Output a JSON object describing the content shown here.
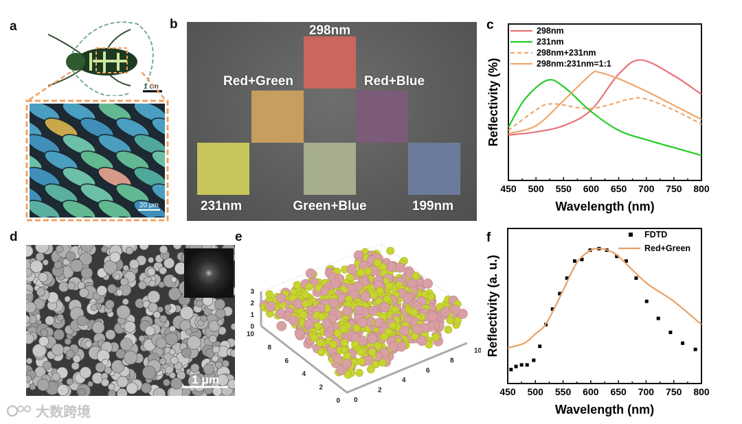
{
  "panels": {
    "a": {
      "label": "a",
      "beetle_scale": "1 cm",
      "scales_scale": "20 μm"
    },
    "b": {
      "label": "b",
      "samples": [
        {
          "name": "298nm",
          "color": "#c9675c"
        },
        {
          "name": "Red+Green",
          "color": "#c79e5e"
        },
        {
          "name": "Red+Blue",
          "color": "#7b5b78"
        },
        {
          "name": "231nm",
          "color": "#c6c65c"
        },
        {
          "name": "Green+Blue",
          "color": "#a6ae8e"
        },
        {
          "name": "199nm",
          "color": "#6c7b9b"
        }
      ]
    },
    "d": {
      "label": "d",
      "scale": "1 μm"
    },
    "e": {
      "label": "e",
      "z_ticks": [
        "0",
        "1",
        "2",
        "3"
      ],
      "y_ticks": [
        "0",
        "2",
        "4",
        "6",
        "8",
        "10"
      ],
      "x_ticks": [
        "0",
        "2",
        "4",
        "6",
        "8",
        "10"
      ],
      "colors": {
        "red": "#d9a0a4",
        "green": "#c8d430"
      }
    }
  },
  "watermark": "大数跨境",
  "chart_data": [
    {
      "id": "c",
      "panel_label": "c",
      "type": "line",
      "xlabel": "Wavelength (nm)",
      "ylabel": "Reflectivity (%)",
      "xlim": [
        450,
        800
      ],
      "ylim": [
        0,
        1
      ],
      "xticks": [
        450,
        500,
        550,
        600,
        650,
        700,
        750,
        800
      ],
      "grid": false,
      "legend_position": "top-left",
      "series": [
        {
          "name": "298nm",
          "color": "#e8737a",
          "dash": false,
          "x": [
            450,
            500,
            550,
            600,
            650,
            690,
            750,
            800
          ],
          "y": [
            0.29,
            0.31,
            0.35,
            0.45,
            0.68,
            0.77,
            0.67,
            0.55
          ]
        },
        {
          "name": "231nm",
          "color": "#22cc22",
          "dash": false,
          "x": [
            450,
            480,
            520,
            550,
            600,
            650,
            700,
            750,
            800
          ],
          "y": [
            0.34,
            0.52,
            0.64,
            0.6,
            0.44,
            0.32,
            0.26,
            0.21,
            0.16
          ]
        },
        {
          "name": "298nm+231nm",
          "color": "#f0a66a",
          "dash": true,
          "x": [
            450,
            500,
            530,
            600,
            670,
            700,
            750,
            800
          ],
          "y": [
            0.32,
            0.45,
            0.49,
            0.46,
            0.52,
            0.52,
            0.45,
            0.36
          ]
        },
        {
          "name": "298nm:231nm=1:1",
          "color": "#f0a66a",
          "dash": false,
          "x": [
            450,
            500,
            550,
            600,
            615,
            650,
            700,
            750,
            800
          ],
          "y": [
            0.3,
            0.35,
            0.51,
            0.68,
            0.69,
            0.65,
            0.57,
            0.48,
            0.39
          ]
        }
      ]
    },
    {
      "id": "f",
      "panel_label": "f",
      "type": "line",
      "xlabel": "Wavelength (nm)",
      "ylabel": "Reflectivity (a. u.)",
      "xlim": [
        450,
        800
      ],
      "ylim": [
        0,
        1
      ],
      "xticks": [
        450,
        500,
        550,
        600,
        650,
        700,
        750,
        800
      ],
      "grid": false,
      "legend_position": "top-right",
      "series": [
        {
          "name": "FDTD",
          "color": "#000000",
          "marker": "square",
          "x": [
            456,
            465,
            475,
            485,
            497,
            508,
            519,
            531,
            544,
            557,
            571,
            584,
            599,
            615,
            629,
            647,
            664,
            682,
            701,
            722,
            744,
            766,
            789
          ],
          "y": [
            0.09,
            0.11,
            0.12,
            0.12,
            0.15,
            0.24,
            0.38,
            0.48,
            0.58,
            0.68,
            0.79,
            0.8,
            0.86,
            0.87,
            0.86,
            0.82,
            0.79,
            0.68,
            0.53,
            0.42,
            0.33,
            0.26,
            0.22
          ]
        },
        {
          "name": "Red+Green",
          "color": "#e8a066",
          "dash": false,
          "x": [
            450,
            480,
            500,
            520,
            550,
            575,
            600,
            615,
            630,
            650,
            700,
            750,
            800
          ],
          "y": [
            0.23,
            0.26,
            0.32,
            0.39,
            0.6,
            0.78,
            0.86,
            0.87,
            0.86,
            0.82,
            0.65,
            0.53,
            0.38
          ]
        }
      ]
    }
  ]
}
